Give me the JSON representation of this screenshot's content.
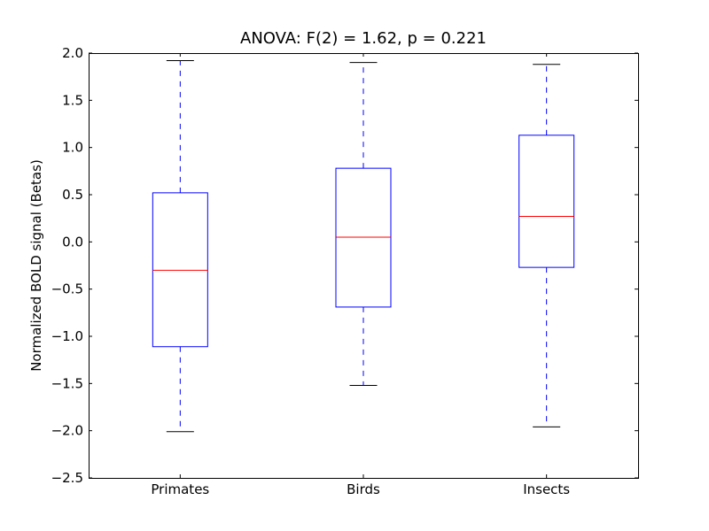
{
  "chart_data": {
    "type": "box",
    "title": "ANOVA: F(2) = 1.62, p = 0.221",
    "xlabel": "",
    "ylabel": "Normalized BOLD signal (Betas)",
    "ylim": [
      -2.5,
      2.0
    ],
    "yticks": [
      -2.5,
      -2.0,
      -1.5,
      -1.0,
      -0.5,
      0.0,
      0.5,
      1.0,
      1.5,
      2.0
    ],
    "ytick_labels": [
      "−2.5",
      "−2.0",
      "−1.5",
      "−1.0",
      "−0.5",
      "0.0",
      "0.5",
      "1.0",
      "1.5",
      "2.0"
    ],
    "grid": false,
    "colors": {
      "box": "#0000ff",
      "median": "#ff0000",
      "whisker": "#0000ff",
      "cap": "#000000"
    },
    "categories": [
      "Primates",
      "Birds",
      "Insects"
    ],
    "boxes": [
      {
        "label": "Primates",
        "whisker_low": -2.01,
        "q1": -1.11,
        "median": -0.3,
        "q3": 0.52,
        "whisker_high": 1.92
      },
      {
        "label": "Birds",
        "whisker_low": -1.52,
        "q1": -0.69,
        "median": 0.05,
        "q3": 0.78,
        "whisker_high": 1.9
      },
      {
        "label": "Insects",
        "whisker_low": -1.96,
        "q1": -0.27,
        "median": 0.27,
        "q3": 1.13,
        "whisker_high": 1.88
      }
    ]
  }
}
